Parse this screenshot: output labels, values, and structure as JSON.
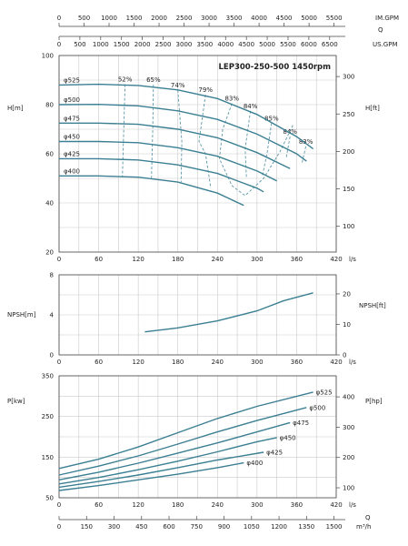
{
  "top_axes": {
    "imgpm": {
      "ticks": [
        0,
        500,
        1000,
        1500,
        2000,
        2500,
        3000,
        3500,
        4000,
        4500,
        5000,
        5500
      ],
      "unit": "IM.GPM"
    },
    "q_label": "Q",
    "usgpm": {
      "ticks": [
        0,
        500,
        1000,
        1500,
        2000,
        2500,
        3000,
        3500,
        4000,
        4500,
        5000,
        5500,
        6000,
        6500
      ],
      "unit": "US.GPM"
    }
  },
  "bottom_axis": {
    "ticks": [
      0,
      150,
      300,
      450,
      600,
      750,
      900,
      1050,
      1200,
      1350,
      1500
    ],
    "unit": "m³/h",
    "q_label": "Q"
  },
  "chart_data": [
    {
      "type": "line",
      "name": "head",
      "title": "LEP300-250-500 1450rpm",
      "ylabel": "H[m]",
      "ylabel_right": "H[ft]",
      "xunit": "l/s",
      "xlim": [
        0,
        420
      ],
      "ylim": [
        20,
        100
      ],
      "xticks": [
        0,
        60,
        120,
        180,
        240,
        300,
        360,
        420
      ],
      "yticks": [
        20,
        40,
        60,
        80,
        100
      ],
      "yticks_right": [
        100,
        150,
        200,
        250,
        300
      ],
      "series": [
        {
          "name": "φ525",
          "points": [
            [
              0,
              88
            ],
            [
              60,
              88.3
            ],
            [
              120,
              87.8
            ],
            [
              180,
              86
            ],
            [
              240,
              82.5
            ],
            [
              300,
              76
            ],
            [
              360,
              67
            ],
            [
              385,
              62
            ]
          ]
        },
        {
          "name": "φ500",
          "points": [
            [
              0,
              80
            ],
            [
              60,
              80.1
            ],
            [
              120,
              79.5
            ],
            [
              180,
              77.5
            ],
            [
              240,
              74
            ],
            [
              300,
              68
            ],
            [
              360,
              60
            ],
            [
              375,
              57
            ]
          ]
        },
        {
          "name": "φ475",
          "points": [
            [
              0,
              72.5
            ],
            [
              60,
              72.5
            ],
            [
              120,
              72
            ],
            [
              180,
              70
            ],
            [
              240,
              66.5
            ],
            [
              300,
              60.5
            ],
            [
              350,
              54
            ]
          ]
        },
        {
          "name": "φ450",
          "points": [
            [
              0,
              65
            ],
            [
              60,
              65
            ],
            [
              120,
              64.5
            ],
            [
              180,
              62.5
            ],
            [
              240,
              59
            ],
            [
              300,
              53
            ],
            [
              330,
              49
            ]
          ]
        },
        {
          "name": "φ425",
          "points": [
            [
              0,
              58
            ],
            [
              60,
              58
            ],
            [
              120,
              57.5
            ],
            [
              180,
              55.5
            ],
            [
              240,
              52
            ],
            [
              300,
              46
            ],
            [
              310,
              44.5
            ]
          ]
        },
        {
          "name": "φ400",
          "points": [
            [
              0,
              51
            ],
            [
              60,
              51
            ],
            [
              120,
              50.5
            ],
            [
              180,
              48.5
            ],
            [
              240,
              44
            ],
            [
              280,
              39
            ]
          ]
        }
      ],
      "efficiency": [
        {
          "name": "52%",
          "points": [
            [
              100,
              88.3
            ],
            [
              98,
              70
            ],
            [
              96,
              50.5
            ]
          ]
        },
        {
          "name": "65%",
          "points": [
            [
              143,
              88.1
            ],
            [
              142,
              70
            ],
            [
              140,
              50.2
            ]
          ]
        },
        {
          "name": "74%",
          "points": [
            [
              180,
              86
            ],
            [
              186,
              65
            ],
            [
              185,
              48.5
            ]
          ]
        },
        {
          "name": "79%",
          "points": [
            [
              222,
              84
            ],
            [
              212,
              65
            ],
            [
              222,
              60
            ],
            [
              230,
              46
            ]
          ]
        },
        {
          "name": "83%",
          "points": [
            [
              262,
              80.5
            ],
            [
              248,
              70
            ],
            [
              243,
              58
            ],
            [
              262,
              47
            ],
            [
              282,
              43
            ],
            [
              310,
              50
            ],
            [
              335,
              61
            ],
            [
              355,
              72
            ]
          ]
        },
        {
          "name": "84%",
          "points": [
            [
              290,
              77.5
            ],
            [
              282,
              62
            ],
            [
              284,
              50
            ]
          ]
        },
        {
          "name": "85%",
          "points": [
            [
              322,
              72.5
            ],
            [
              315,
              60
            ],
            [
              308,
              51
            ]
          ]
        },
        {
          "name": "84%",
          "points": [
            [
              350,
              67
            ],
            [
              344,
              58
            ]
          ]
        },
        {
          "name": "83%",
          "points": [
            [
              374,
              63
            ],
            [
              368,
              56
            ]
          ]
        }
      ]
    },
    {
      "type": "line",
      "name": "npsh",
      "ylabel": "NPSH[m]",
      "ylabel_right": "NPSH[ft]",
      "xunit": "l/s",
      "xlim": [
        0,
        420
      ],
      "ylim": [
        0,
        8
      ],
      "xticks": [
        0,
        60,
        120,
        180,
        240,
        300,
        360,
        420
      ],
      "yticks": [
        0,
        4,
        8
      ],
      "yticks_right": [
        0,
        10,
        20
      ],
      "series": [
        {
          "name": "NPSH",
          "points": [
            [
              130,
              2.3
            ],
            [
              180,
              2.7
            ],
            [
              240,
              3.4
            ],
            [
              300,
              4.4
            ],
            [
              340,
              5.4
            ],
            [
              385,
              6.2
            ]
          ]
        }
      ]
    },
    {
      "type": "line",
      "name": "power",
      "ylabel": "P[kw]",
      "ylabel_right": "P[hp]",
      "xunit": "l/s",
      "xlim": [
        0,
        420
      ],
      "ylim": [
        50,
        350
      ],
      "xticks": [
        0,
        60,
        120,
        180,
        240,
        300,
        360,
        420
      ],
      "yticks": [
        50,
        150,
        250,
        350
      ],
      "yticks_right": [
        100,
        200,
        300,
        400
      ],
      "series": [
        {
          "name": "φ525",
          "points": [
            [
              0,
              122
            ],
            [
              60,
              145
            ],
            [
              120,
              175
            ],
            [
              180,
              210
            ],
            [
              240,
              245
            ],
            [
              300,
              275
            ],
            [
              385,
              310
            ]
          ]
        },
        {
          "name": "φ500",
          "points": [
            [
              0,
              106
            ],
            [
              60,
              128
            ],
            [
              120,
              153
            ],
            [
              180,
              182
            ],
            [
              240,
              212
            ],
            [
              300,
              240
            ],
            [
              375,
              272
            ]
          ]
        },
        {
          "name": "φ475",
          "points": [
            [
              0,
              94
            ],
            [
              60,
              113
            ],
            [
              120,
              135
            ],
            [
              180,
              160
            ],
            [
              240,
              185
            ],
            [
              300,
              212
            ],
            [
              350,
              235
            ]
          ]
        },
        {
          "name": "φ450",
          "points": [
            [
              0,
              84
            ],
            [
              60,
              100
            ],
            [
              120,
              119
            ],
            [
              180,
              140
            ],
            [
              240,
              163
            ],
            [
              300,
              188
            ],
            [
              330,
              198
            ]
          ]
        },
        {
          "name": "φ425",
          "points": [
            [
              0,
              76
            ],
            [
              60,
              90
            ],
            [
              120,
              106
            ],
            [
              180,
              124
            ],
            [
              240,
              143
            ],
            [
              310,
              162
            ]
          ]
        },
        {
          "name": "φ400",
          "points": [
            [
              0,
              68
            ],
            [
              60,
              80
            ],
            [
              120,
              94
            ],
            [
              180,
              108
            ],
            [
              240,
              124
            ],
            [
              280,
              136
            ]
          ]
        }
      ]
    }
  ]
}
